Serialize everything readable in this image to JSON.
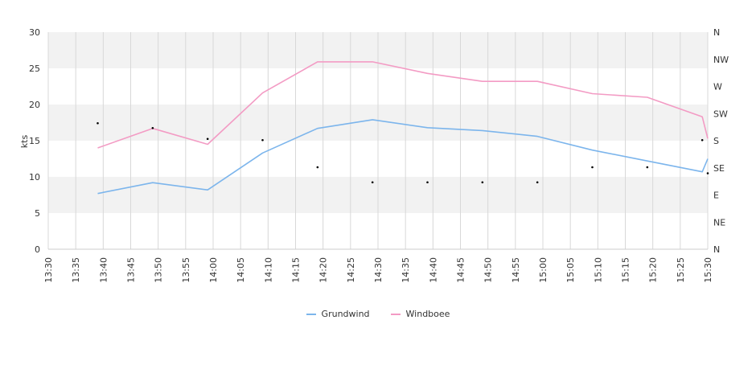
{
  "chart_data": {
    "type": "line",
    "ylabel": "kts",
    "ylim": [
      0,
      30
    ],
    "y_ticks": [
      0,
      5,
      10,
      15,
      20,
      25,
      30
    ],
    "x_ticks": [
      "13:30",
      "13:35",
      "13:40",
      "13:45",
      "13:50",
      "13:55",
      "14:00",
      "14:05",
      "14:10",
      "14:15",
      "14:20",
      "14:25",
      "14:30",
      "14:35",
      "14:40",
      "14:45",
      "14:50",
      "14:55",
      "15:00",
      "15:05",
      "15:10",
      "15:15",
      "15:20",
      "15:25",
      "15:30"
    ],
    "x_minutes_per_tick": 5,
    "direction_axis": {
      "labels": [
        "N",
        "NE",
        "E",
        "SE",
        "S",
        "SW",
        "W",
        "NW",
        "N"
      ],
      "values_deg": [
        0,
        45,
        90,
        135,
        180,
        225,
        270,
        315,
        360
      ]
    },
    "grid": true,
    "legend_position": "bottom",
    "series": [
      {
        "name": "Grundwind",
        "color": "#7cb5ec",
        "x": [
          "13:39",
          "13:49",
          "13:59",
          "14:09",
          "14:19",
          "14:29",
          "14:39",
          "14:49",
          "14:59",
          "15:09",
          "15:19",
          "15:29",
          "15:30"
        ],
        "values": [
          7.7,
          9.2,
          8.2,
          13.3,
          16.7,
          17.9,
          16.8,
          16.4,
          15.6,
          13.7,
          12.2,
          10.7,
          12.5
        ]
      },
      {
        "name": "Windboee",
        "color": "#f39bc4",
        "x": [
          "13:39",
          "13:49",
          "13:59",
          "14:09",
          "14:19",
          "14:29",
          "14:39",
          "14:49",
          "14:59",
          "15:09",
          "15:19",
          "15:29",
          "15:30"
        ],
        "values": [
          14.0,
          16.7,
          14.5,
          21.6,
          25.9,
          25.9,
          24.3,
          23.2,
          23.2,
          21.5,
          21.0,
          18.3,
          15.3
        ]
      }
    ],
    "direction_points": {
      "x": [
        "13:39",
        "13:49",
        "13:59",
        "14:09",
        "14:19",
        "14:29",
        "14:39",
        "14:49",
        "14:59",
        "15:09",
        "15:19",
        "15:29",
        "15:30"
      ],
      "deg": [
        209,
        201,
        183,
        181,
        136,
        111,
        111,
        111,
        111,
        136,
        136,
        181,
        126
      ]
    }
  },
  "legend": [
    {
      "label": "Grundwind",
      "color": "#7cb5ec"
    },
    {
      "label": "Windboee",
      "color": "#f39bc4"
    }
  ]
}
